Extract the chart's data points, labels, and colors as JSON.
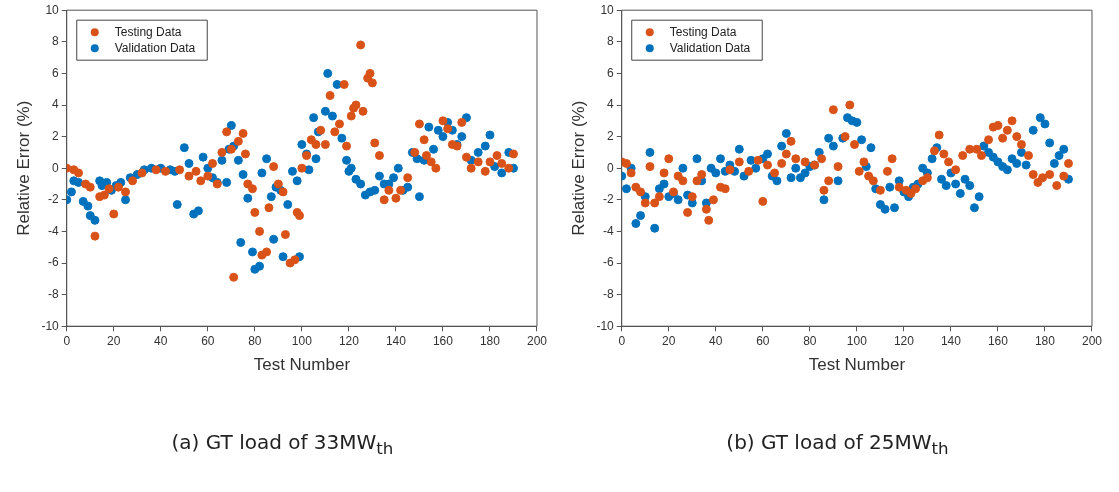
{
  "chart_data": [
    {
      "type": "scatter",
      "xlabel": "Test Number",
      "ylabel": "Relative Error (%)",
      "annotations": [
        "(a) GT load of 33MW$_{th}$"
      ],
      "xlim": [
        0,
        200
      ],
      "xticks": [
        0,
        20,
        40,
        60,
        80,
        100,
        120,
        140,
        160,
        180,
        200
      ],
      "ylim": [
        -10,
        10
      ],
      "yticks": [
        -10,
        -8,
        -6,
        -4,
        -2,
        0,
        2,
        4,
        6,
        8,
        10
      ],
      "grid": false,
      "legend": "top left",
      "marker": "circle",
      "series": [
        {
          "name": "Testing Data",
          "color": "#d95319",
          "x": [
            0,
            3,
            5,
            8,
            10,
            12,
            14,
            16,
            18,
            20,
            22,
            25,
            28,
            32,
            38,
            42,
            48,
            52,
            55,
            57,
            60,
            62,
            64,
            66,
            68,
            70,
            71,
            73,
            75,
            76,
            77,
            79,
            80,
            82,
            83,
            85,
            86,
            88,
            90,
            92,
            93,
            95,
            97,
            98,
            99,
            100,
            102,
            104,
            106,
            108,
            110,
            112,
            114,
            116,
            118,
            119,
            121,
            122,
            123,
            125,
            126,
            128,
            129,
            130,
            131,
            133,
            135,
            137,
            140,
            142,
            145,
            148,
            150,
            152,
            153,
            155,
            157,
            160,
            162,
            164,
            166,
            168,
            170,
            172,
            175,
            178,
            180,
            183,
            185,
            188,
            190
          ],
          "values": [
            0,
            -0.1,
            -0.3,
            -1,
            -1.2,
            -4.3,
            -1.8,
            -1.7,
            -1.3,
            -2.9,
            -1.2,
            -1.5,
            -0.8,
            -0.3,
            -0.1,
            -0.2,
            -0.1,
            -0.5,
            -0.2,
            -0.8,
            -0.5,
            0.3,
            -1,
            1,
            2.3,
            1.2,
            -6.9,
            1.7,
            2.2,
            0.9,
            -1,
            -1.3,
            -2.8,
            -4,
            -5.5,
            -5.3,
            -2.5,
            0.1,
            -1,
            -1.5,
            -4.2,
            -6,
            -5.8,
            -2.8,
            -3,
            0,
            0.8,
            1.8,
            1.5,
            2.4,
            1.5,
            4.6,
            2.3,
            2.8,
            5.3,
            1.4,
            3.3,
            3.8,
            4,
            7.8,
            3.6,
            5.7,
            6,
            5.4,
            1.6,
            0.8,
            -2,
            -1.4,
            -1.9,
            -1.4,
            -0.6,
            1,
            2.8,
            1.8,
            0.8,
            0.4,
            0,
            3,
            2.5,
            1.5,
            1.4,
            2.9,
            0.7,
            0,
            0.4,
            -0.2,
            0.4,
            0.8,
            0.3,
            0,
            0.9
          ]
        },
        {
          "name": "Validation Data",
          "color": "#0072bd",
          "x": [
            0,
            2,
            3,
            5,
            7,
            9,
            10,
            12,
            14,
            15,
            17,
            19,
            21,
            23,
            25,
            27,
            30,
            33,
            36,
            40,
            44,
            46,
            47,
            50,
            52,
            54,
            56,
            58,
            60,
            62,
            64,
            66,
            68,
            69,
            70,
            71,
            73,
            74,
            75,
            77,
            79,
            80,
            82,
            83,
            85,
            87,
            88,
            89,
            91,
            92,
            94,
            96,
            98,
            99,
            100,
            102,
            103,
            105,
            106,
            107,
            110,
            111,
            113,
            115,
            117,
            119,
            120,
            121,
            123,
            125,
            127,
            129,
            131,
            133,
            135,
            137,
            139,
            141,
            143,
            145,
            147,
            149,
            150,
            152,
            154,
            156,
            158,
            160,
            162,
            164,
            166,
            168,
            170,
            172,
            175,
            178,
            180,
            182,
            185,
            188,
            190
          ],
          "values": [
            -2,
            -1.5,
            -0.8,
            -0.9,
            -2.1,
            -2.4,
            -3,
            -3.3,
            -0.8,
            -1.1,
            -0.9,
            -1.4,
            -1.1,
            -0.9,
            -2,
            -0.6,
            -0.4,
            -0.1,
            0,
            0,
            -0.1,
            -0.2,
            -2.3,
            1.3,
            0.3,
            -2.9,
            -2.7,
            0.7,
            0,
            -0.6,
            -0.9,
            0.5,
            -0.9,
            1.2,
            2.7,
            1.4,
            0.5,
            -4.7,
            -0.4,
            -1.9,
            -5.3,
            -6.4,
            -6.2,
            -0.3,
            0.6,
            -1.8,
            -4.5,
            -1.2,
            -1.4,
            -5.6,
            -2.3,
            -0.2,
            -0.8,
            -5.6,
            1.5,
            0.9,
            -0.1,
            3.2,
            0.6,
            2.3,
            3.6,
            6,
            3.3,
            5.3,
            1.9,
            0.5,
            -0.2,
            0,
            -0.7,
            -1,
            -1.7,
            -1.5,
            -1.4,
            -0.5,
            -1,
            -1,
            -0.6,
            0,
            -1.4,
            -1.2,
            1,
            0.6,
            -1.8,
            0.5,
            2.6,
            1.2,
            2.4,
            2,
            2.9,
            2.4,
            1.5,
            2,
            3.2,
            0.5,
            1,
            1.4,
            2.1,
            0.1,
            -0.3,
            1,
            0
          ]
        }
      ]
    },
    {
      "type": "scatter",
      "xlabel": "Test Number",
      "ylabel": "Relative Error (%)",
      "annotations": [
        "(b) GT load of 25MW$_{th}$"
      ],
      "xlim": [
        0,
        200
      ],
      "xticks": [
        0,
        20,
        40,
        60,
        80,
        100,
        120,
        140,
        160,
        180,
        200
      ],
      "ylim": [
        -10,
        10
      ],
      "yticks": [
        -10,
        -8,
        -6,
        -4,
        -2,
        0,
        2,
        4,
        6,
        8,
        10
      ],
      "grid": false,
      "legend": "top left",
      "marker": "circle",
      "series": [
        {
          "name": "Testing Data",
          "color": "#d95319",
          "x": [
            0,
            2,
            4,
            6,
            8,
            10,
            12,
            14,
            16,
            18,
            20,
            22,
            24,
            26,
            28,
            30,
            32,
            34,
            36,
            37,
            39,
            42,
            44,
            46,
            50,
            54,
            58,
            60,
            62,
            65,
            68,
            70,
            72,
            74,
            78,
            82,
            85,
            86,
            88,
            90,
            92,
            95,
            97,
            99,
            101,
            103,
            105,
            107,
            110,
            113,
            115,
            118,
            121,
            123,
            125,
            128,
            130,
            133,
            135,
            137,
            139,
            142,
            145,
            148,
            151,
            153,
            156,
            158,
            160,
            162,
            164,
            166,
            168,
            170,
            173,
            175,
            177,
            179,
            182,
            185,
            188,
            190
          ],
          "values": [
            0.4,
            0.3,
            -0.3,
            -1.2,
            -1.5,
            -2.2,
            0.1,
            -2.2,
            -1.8,
            -0.3,
            0.6,
            -1.5,
            -0.5,
            -0.8,
            -2.8,
            -1.8,
            -0.8,
            -0.4,
            -2.6,
            -3.3,
            -2,
            -1.2,
            -1.3,
            -0.1,
            0.4,
            -0.2,
            0.5,
            -2.1,
            0.2,
            -0.3,
            0.3,
            0.9,
            1.7,
            0.6,
            0.4,
            0.2,
            0.6,
            -1.4,
            -0.8,
            3.7,
            0.1,
            2,
            4,
            1.5,
            -0.2,
            0.4,
            -0.5,
            -0.8,
            -1.4,
            -0.2,
            0.6,
            -1.2,
            -1.4,
            -1.6,
            -1.3,
            -0.8,
            -0.6,
            1.1,
            2.1,
            0.9,
            0.4,
            -0.1,
            0.8,
            1.2,
            1.2,
            0.8,
            1.8,
            2.6,
            2.7,
            1.9,
            2.4,
            3,
            2,
            1.5,
            0.8,
            -0.4,
            -0.9,
            -0.6,
            -0.4,
            -1.1,
            -0.5,
            0.3
          ]
        },
        {
          "name": "Validation Data",
          "color": "#0072bd",
          "x": [
            0,
            2,
            4,
            6,
            8,
            10,
            12,
            14,
            16,
            18,
            20,
            22,
            24,
            26,
            28,
            30,
            32,
            34,
            36,
            38,
            40,
            42,
            44,
            46,
            48,
            50,
            52,
            55,
            57,
            60,
            62,
            64,
            66,
            68,
            70,
            72,
            74,
            76,
            78,
            80,
            82,
            84,
            86,
            88,
            90,
            92,
            94,
            96,
            98,
            100,
            102,
            104,
            106,
            108,
            110,
            112,
            114,
            116,
            118,
            120,
            122,
            124,
            126,
            128,
            130,
            132,
            134,
            136,
            138,
            140,
            142,
            144,
            146,
            148,
            150,
            152,
            154,
            156,
            158,
            160,
            162,
            164,
            166,
            168,
            170,
            172,
            175,
            178,
            180,
            182,
            184,
            186,
            188,
            190
          ],
          "values": [
            -0.5,
            -1.3,
            0,
            -3.5,
            -3,
            -1.8,
            1,
            -3.8,
            -1.3,
            -1,
            -1.8,
            -1.6,
            -2,
            0,
            -1.7,
            -2.2,
            0.6,
            -0.8,
            -2.2,
            0,
            -0.3,
            0.6,
            -0.2,
            0.2,
            -0.2,
            1.2,
            -0.5,
            0.5,
            0,
            0.6,
            0.9,
            -0.5,
            -0.8,
            1.4,
            2.2,
            -0.6,
            0,
            -0.6,
            -0.3,
            0.1,
            0.2,
            1,
            -2,
            1.9,
            1.4,
            -0.8,
            1.9,
            3.2,
            3,
            2.9,
            1.8,
            0.1,
            1.3,
            -1.3,
            -2.3,
            -2.6,
            -1.2,
            -2.5,
            -0.8,
            -1.5,
            -1.8,
            -1.2,
            -1,
            0,
            -0.3,
            0.6,
            1.3,
            -0.7,
            -1.1,
            -0.3,
            -1,
            -1.6,
            -0.7,
            -1.1,
            -2.5,
            -1.8,
            1.4,
            1,
            0.7,
            0.4,
            0.1,
            -0.1,
            0.6,
            0.3,
            1,
            0.2,
            2.4,
            3.2,
            2.8,
            1.6,
            0.3,
            0.8,
            1.2,
            -0.7
          ]
        }
      ]
    }
  ]
}
